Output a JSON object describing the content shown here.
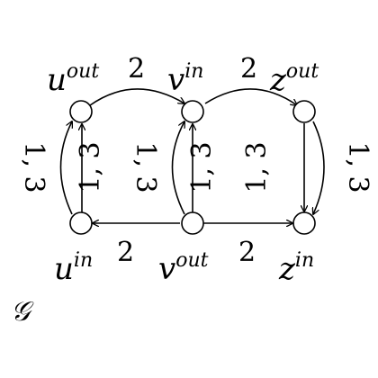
{
  "graph_name": "𝒢",
  "nodes": {
    "u_out": {
      "base": "u",
      "sup": "out"
    },
    "v_in": {
      "base": "v",
      "sup": "in"
    },
    "z_out": {
      "base": "z",
      "sup": "out"
    },
    "u_in": {
      "base": "u",
      "sup": "in"
    },
    "v_out": {
      "base": "v",
      "sup": "out"
    },
    "z_in": {
      "base": "z",
      "sup": "in"
    }
  },
  "edge_labels": {
    "u_out_v_in": "2",
    "v_in_z_out": "2",
    "v_out_u_in": "2",
    "v_out_z_in": "2",
    "u_left_arc": "1, 3",
    "u_straight": "1, 3",
    "v_left_arc": "1, 3",
    "v_straight": "1, 3",
    "z_straight": "1, 3",
    "z_right_arc": "1, 3"
  }
}
